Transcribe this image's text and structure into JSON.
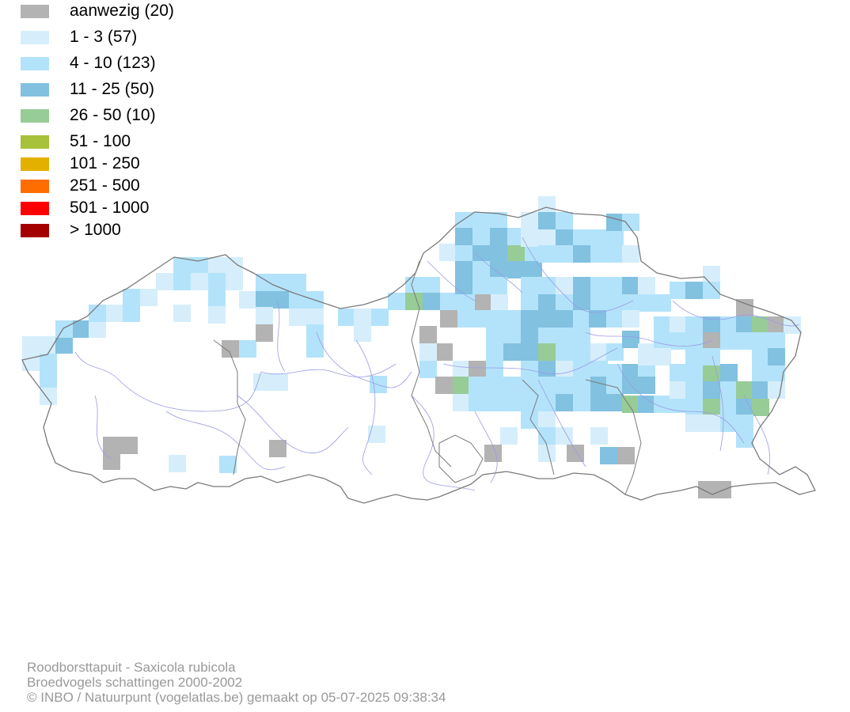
{
  "legend": {
    "items": [
      {
        "label": "aanwezig (20)",
        "color": "#b3b3b3"
      },
      {
        "label": "1 - 3 (57)",
        "color": "#d6eefb"
      },
      {
        "label": "4 - 10 (123)",
        "color": "#b3e3fa"
      },
      {
        "label": "11 - 25 (50)",
        "color": "#82c1e0"
      },
      {
        "label": "26 - 50 (10)",
        "color": "#97cc97"
      },
      {
        "label": "51 - 100",
        "color": "#a8c13a"
      },
      {
        "label": "101 - 250",
        "color": "#e3b000"
      },
      {
        "label": "251 - 500",
        "color": "#ff6d00"
      },
      {
        "label": "501 - 1000",
        "color": "#ff0000"
      },
      {
        "label": "> 1000",
        "color": "#a50000"
      }
    ]
  },
  "footer": {
    "species": "Roodborsttapuit - Saxicola rubicola",
    "dataset": "Broedvogels schattingen 2000-2002",
    "credit": "© INBO / Natuurpunt (vogelatlas.be) gemaakt op 05-07-2025 09:38:34"
  },
  "map": {
    "outline_color": "#7a7a7a",
    "river_color": "#9a9ae6"
  }
}
